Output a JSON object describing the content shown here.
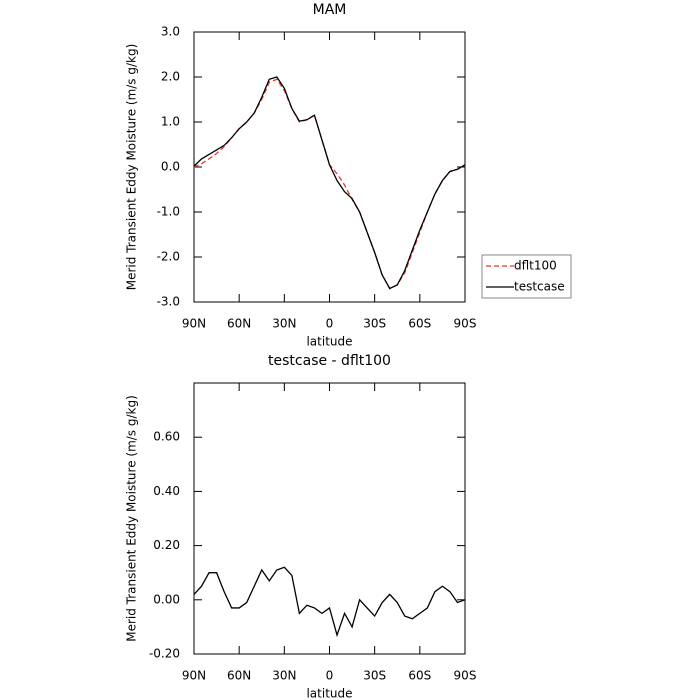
{
  "chart_data": [
    {
      "type": "line",
      "title": "MAM",
      "xlabel": "latitude",
      "ylabel": "Merid Transient Eddy Moisture (m/s g/kg)",
      "x": [
        90,
        85,
        80,
        75,
        70,
        65,
        60,
        55,
        50,
        45,
        40,
        35,
        30,
        25,
        20,
        15,
        10,
        5,
        0,
        -5,
        -10,
        -15,
        -20,
        -25,
        -30,
        -35,
        -40,
        -45,
        -50,
        -55,
        -60,
        -65,
        -70,
        -75,
        -80,
        -85,
        -90
      ],
      "series": [
        {
          "name": "dflt100",
          "color": "#e8352e",
          "dash": true,
          "values": [
            0.0,
            0.07,
            0.18,
            0.3,
            0.45,
            0.65,
            0.85,
            1.0,
            1.2,
            1.5,
            1.88,
            1.95,
            1.7,
            1.3,
            1.0,
            1.05,
            1.15,
            0.6,
            0.05,
            -0.15,
            -0.4,
            -0.72,
            -1.0,
            -1.45,
            -1.9,
            -2.4,
            -2.7,
            -2.62,
            -2.35,
            -1.9,
            -1.45,
            -1.0,
            -0.6,
            -0.3,
            -0.1,
            -0.05,
            0.05
          ]
        },
        {
          "name": "testcase",
          "color": "#000000",
          "dash": false,
          "values": [
            0.02,
            0.18,
            0.28,
            0.38,
            0.48,
            0.65,
            0.85,
            1.0,
            1.2,
            1.55,
            1.95,
            2.0,
            1.75,
            1.3,
            1.02,
            1.05,
            1.15,
            0.6,
            0.05,
            -0.3,
            -0.55,
            -0.7,
            -1.0,
            -1.45,
            -1.9,
            -2.4,
            -2.7,
            -2.62,
            -2.3,
            -1.85,
            -1.4,
            -1.0,
            -0.6,
            -0.3,
            -0.1,
            -0.05,
            0.05
          ]
        }
      ],
      "xlim": [
        90,
        -90
      ],
      "xticks": [
        {
          "value": 90,
          "label": "90N"
        },
        {
          "value": 60,
          "label": "60N"
        },
        {
          "value": 30,
          "label": "30N"
        },
        0,
        {
          "value": -30,
          "label": "30S"
        },
        {
          "value": -60,
          "label": "60S"
        },
        {
          "value": -90,
          "label": "90S"
        }
      ],
      "ylim": [
        -3,
        3
      ],
      "yticks": [
        {
          "value": -3,
          "label": "-3.0"
        },
        {
          "value": -2,
          "label": "-2.0"
        },
        {
          "value": -1,
          "label": "-1.0"
        },
        {
          "value": 0,
          "label": "0.0"
        },
        {
          "value": 1,
          "label": "1.0"
        },
        {
          "value": 2,
          "label": "2.0"
        },
        {
          "value": 3,
          "label": "3.0"
        }
      ],
      "legend": "right"
    },
    {
      "type": "line",
      "title": "testcase - dflt100",
      "xlabel": "latitude",
      "ylabel": "Merid Transient Eddy Moisture (m/s g/kg)",
      "x": [
        90,
        85,
        80,
        75,
        70,
        65,
        60,
        55,
        50,
        45,
        40,
        35,
        30,
        25,
        20,
        15,
        10,
        5,
        0,
        -5,
        -10,
        -15,
        -20,
        -25,
        -30,
        -35,
        -40,
        -45,
        -50,
        -55,
        -60,
        -65,
        -70,
        -75,
        -80,
        -85,
        -90
      ],
      "series": [
        {
          "name": "testcase - dflt100",
          "color": "#000000",
          "dash": false,
          "values": [
            0.02,
            0.05,
            0.1,
            0.1,
            0.03,
            -0.03,
            -0.03,
            -0.01,
            0.05,
            0.11,
            0.07,
            0.11,
            0.12,
            0.09,
            -0.05,
            -0.02,
            -0.03,
            -0.05,
            -0.03,
            -0.13,
            -0.05,
            -0.1,
            0.0,
            -0.03,
            -0.06,
            -0.01,
            0.02,
            -0.01,
            -0.06,
            -0.07,
            -0.05,
            -0.03,
            0.03,
            0.05,
            0.03,
            -0.01,
            0.0
          ]
        }
      ],
      "xlim": [
        90,
        -90
      ],
      "xticks": [
        {
          "value": 90,
          "label": "90N"
        },
        {
          "value": 60,
          "label": "60N"
        },
        {
          "value": 30,
          "label": "30N"
        },
        0,
        {
          "value": -30,
          "label": "30S"
        },
        {
          "value": -60,
          "label": "60S"
        },
        {
          "value": -90,
          "label": "90S"
        }
      ],
      "ylim": [
        -0.2,
        0.8
      ],
      "yticks": [
        {
          "value": -0.2,
          "label": "-0.20"
        },
        {
          "value": 0,
          "label": "0.00"
        },
        {
          "value": 0.2,
          "label": "0.20"
        },
        {
          "value": 0.4,
          "label": "0.40"
        },
        {
          "value": 0.6,
          "label": "0.60"
        }
      ]
    }
  ]
}
